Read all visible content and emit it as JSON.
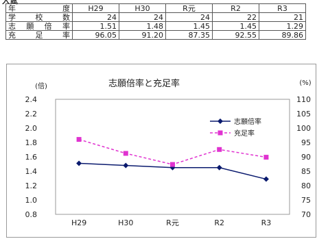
{
  "heading": "入試",
  "table": {
    "header_label": "年度",
    "columns": [
      "H29",
      "H30",
      "R元",
      "R2",
      "R3"
    ],
    "rows": [
      {
        "label": "学校数",
        "values": [
          "24",
          "24",
          "24",
          "22",
          "21"
        ]
      },
      {
        "label": "志願倍率",
        "values": [
          "1.51",
          "1.48",
          "1.45",
          "1.45",
          "1.29"
        ]
      },
      {
        "label": "充足率",
        "values": [
          "96.05",
          "91.20",
          "87.35",
          "92.55",
          "89.86"
        ]
      }
    ]
  },
  "chart_data": {
    "type": "line",
    "title": "志願倍率と充足率",
    "categories": [
      "H29",
      "H30",
      "R元",
      "R2",
      "R3"
    ],
    "left_axis": {
      "label": "(倍)",
      "ylim": [
        0.8,
        2.4
      ],
      "ticks": [
        "0.8",
        "1.0",
        "1.2",
        "1.4",
        "1.6",
        "1.8",
        "2.0",
        "2.2",
        "2.4"
      ]
    },
    "right_axis": {
      "label": "(%)",
      "ylim": [
        70,
        110
      ],
      "ticks": [
        "70",
        "75",
        "80",
        "85",
        "90",
        "95",
        "100",
        "105",
        "110"
      ]
    },
    "series": [
      {
        "name": "志願倍率",
        "axis": "left",
        "values": [
          1.51,
          1.48,
          1.45,
          1.45,
          1.29
        ],
        "color": "#0a1a6e",
        "marker": "diamond",
        "dash": false
      },
      {
        "name": "充足率",
        "axis": "right",
        "values": [
          96.05,
          91.2,
          87.35,
          92.55,
          89.86
        ],
        "color": "#e033d0",
        "marker": "square",
        "dash": true
      }
    ],
    "legend_position": "top-right",
    "grid": false
  }
}
